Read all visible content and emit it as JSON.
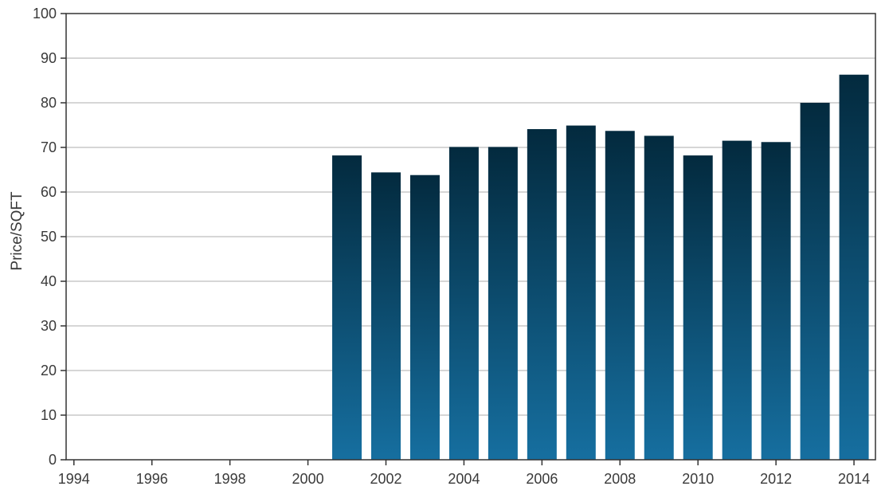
{
  "chart_data": {
    "type": "bar",
    "title": "",
    "xlabel": "",
    "ylabel": "Price/SQFT",
    "ylim": [
      0,
      100
    ],
    "yticks": [
      0,
      10,
      20,
      30,
      40,
      50,
      60,
      70,
      80,
      90,
      100
    ],
    "xlim": [
      1993.8,
      2014.55
    ],
    "xticks": [
      1994,
      1996,
      1998,
      2000,
      2002,
      2004,
      2006,
      2008,
      2010,
      2012,
      2014
    ],
    "grid": true,
    "x": [
      2001,
      2002,
      2003,
      2004,
      2005,
      2006,
      2007,
      2008,
      2009,
      2010,
      2011,
      2012,
      2013,
      2014
    ],
    "values": [
      68.2,
      64.4,
      63.8,
      70.1,
      70.1,
      74.1,
      74.9,
      73.7,
      72.6,
      68.2,
      71.5,
      71.2,
      80.0,
      86.3
    ],
    "bar_color_top": "#032a3e",
    "bar_color_bottom": "#166fa0",
    "grid_color": "#c8c8c8",
    "axis_color": "#333333"
  }
}
